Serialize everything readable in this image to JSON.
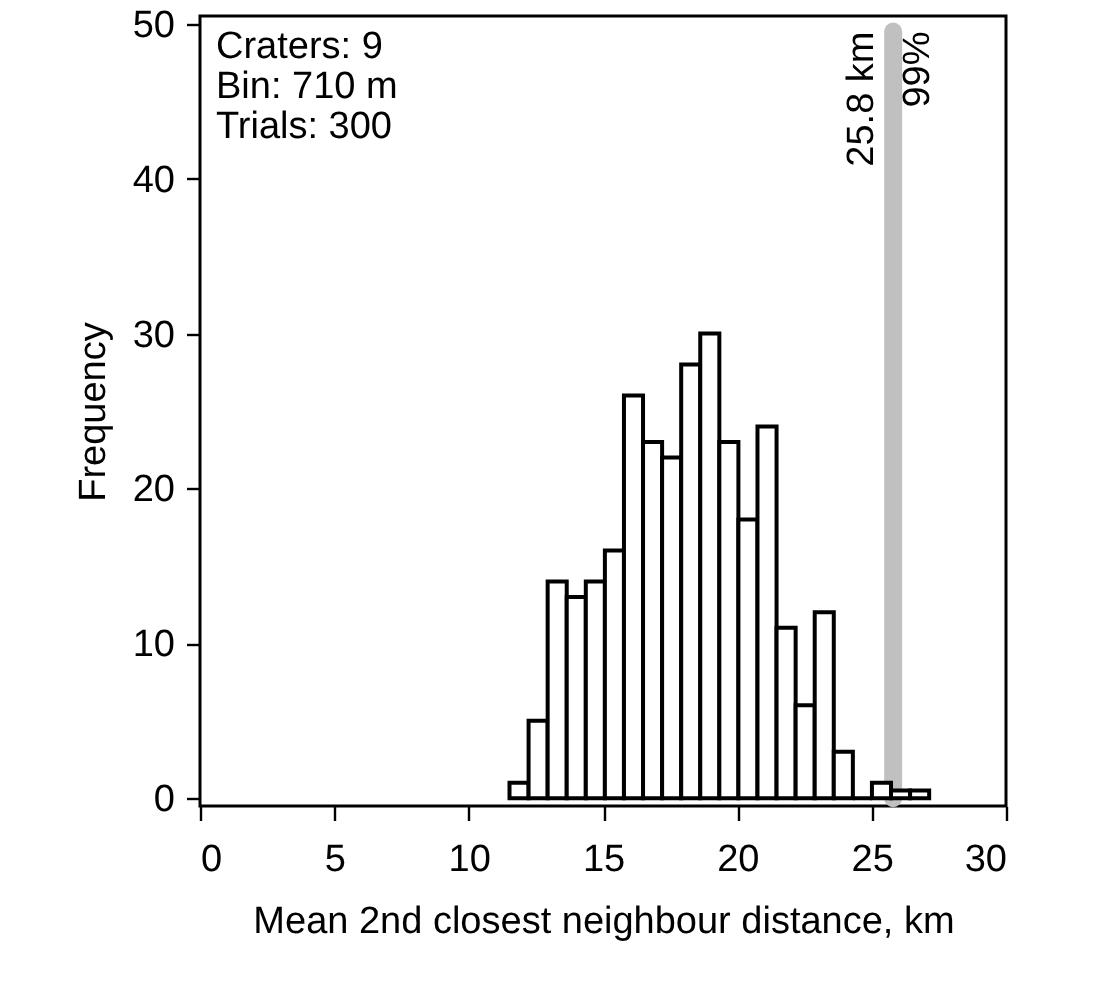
{
  "chart_data": {
    "type": "histogram",
    "xlabel": "Mean 2nd closest neighbour distance, km",
    "ylabel": "Frequency",
    "bins": [
      11.52,
      12.23,
      12.94,
      13.65,
      14.36,
      15.07,
      15.78,
      16.49,
      17.2,
      17.91,
      18.62,
      19.33,
      20.04,
      20.75,
      21.46,
      22.17,
      22.88,
      23.59,
      24.3,
      25.01,
      25.72,
      26.43,
      27.14
    ],
    "values": [
      1,
      5,
      14,
      13,
      14,
      16,
      26,
      23,
      22,
      28,
      30,
      23,
      18,
      24,
      11,
      6,
      12,
      3,
      0,
      1,
      0.5,
      0.5
    ],
    "color": "#000000",
    "xlim": [
      0,
      30
    ],
    "xticks": [
      0,
      5,
      10,
      15,
      20,
      25,
      30
    ],
    "ylim": [
      -0.5,
      50.5
    ],
    "yticks": [
      0,
      10,
      20,
      30,
      40,
      50
    ],
    "grid": false,
    "ref_lines": [
      {
        "axis": "x",
        "value": 25.8,
        "label": "25.8 km\n99%",
        "color": "#c0c0c0"
      }
    ],
    "annotations": [
      "Craters: 9",
      "Bin: 710 m",
      "Trials: 300"
    ]
  }
}
